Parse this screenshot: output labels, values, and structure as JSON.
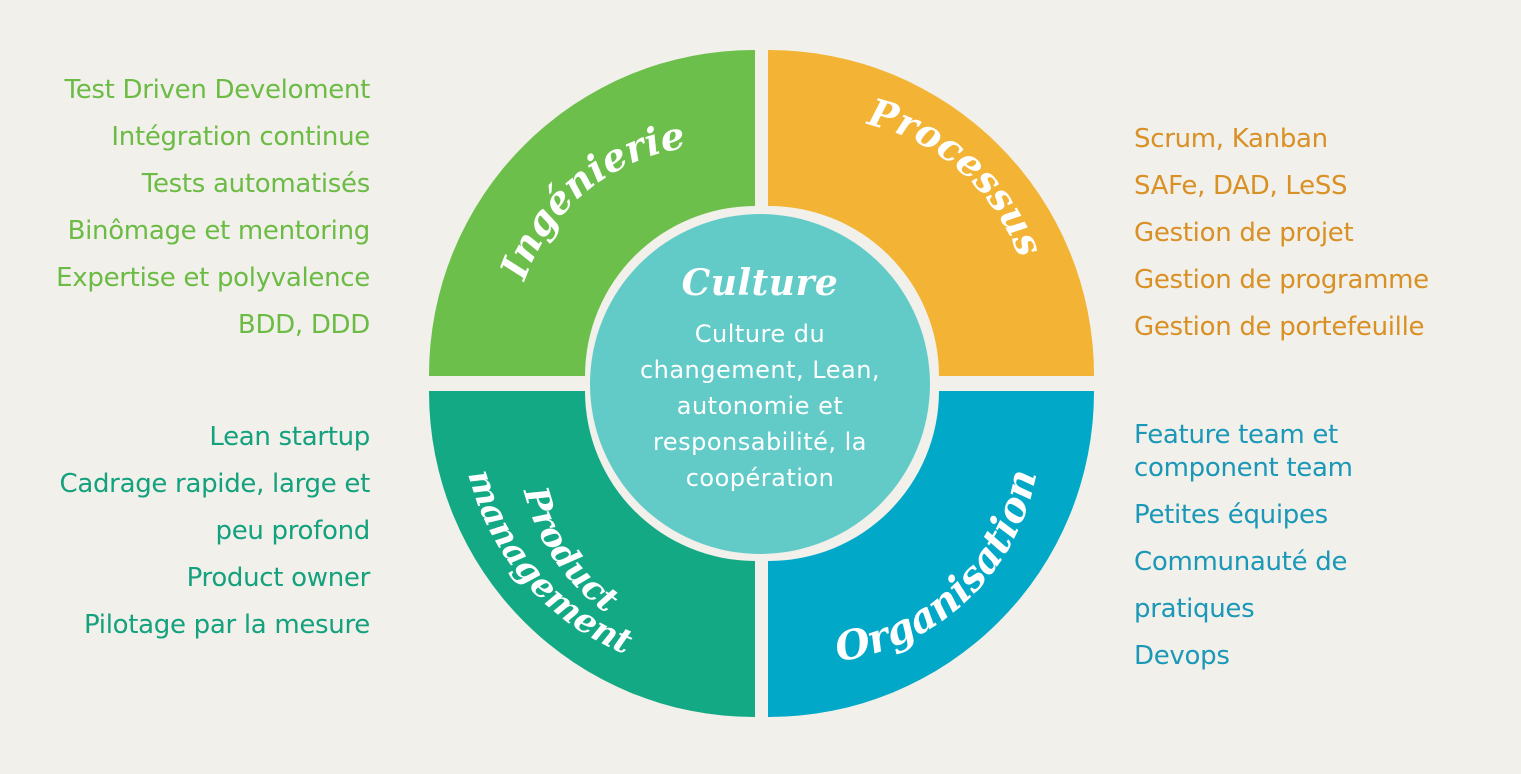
{
  "colors": {
    "background": "#f1f0ea",
    "ingenierie": "#6cbf4a",
    "processus": "#f3b435",
    "product_management": "#13a985",
    "organisation": "#02a8c8",
    "culture": "#62cbc8"
  },
  "center": {
    "title": "Culture",
    "body_lines": [
      "Culture du",
      "changement, Lean,",
      "autonomie et",
      "responsabilité, la",
      "coopération"
    ]
  },
  "segments": {
    "ingenierie": {
      "label": "Ingénierie"
    },
    "processus": {
      "label": "Processus"
    },
    "product_management": {
      "label_line1": "Product",
      "label_line2": "management"
    },
    "organisation": {
      "label": "Organisation"
    }
  },
  "lists": {
    "ingenierie": [
      "Test Driven Develoment",
      "Intégration continue",
      "Tests automatisés",
      "Binômage et mentoring",
      "Expertise et polyvalence",
      "BDD, DDD"
    ],
    "processus": [
      "Scrum, Kanban",
      "SAFe, DAD, LeSS",
      "Gestion de projet",
      "Gestion de programme",
      "Gestion de portefeuille"
    ],
    "product_management": [
      "Lean startup",
      "Cadrage rapide, large et",
      "peu profond",
      "Product owner",
      "Pilotage par la mesure"
    ],
    "organisation": [
      "Feature team et",
      "component team",
      "Petites équipes",
      "Communauté de",
      "pratiques",
      "Devops"
    ]
  }
}
